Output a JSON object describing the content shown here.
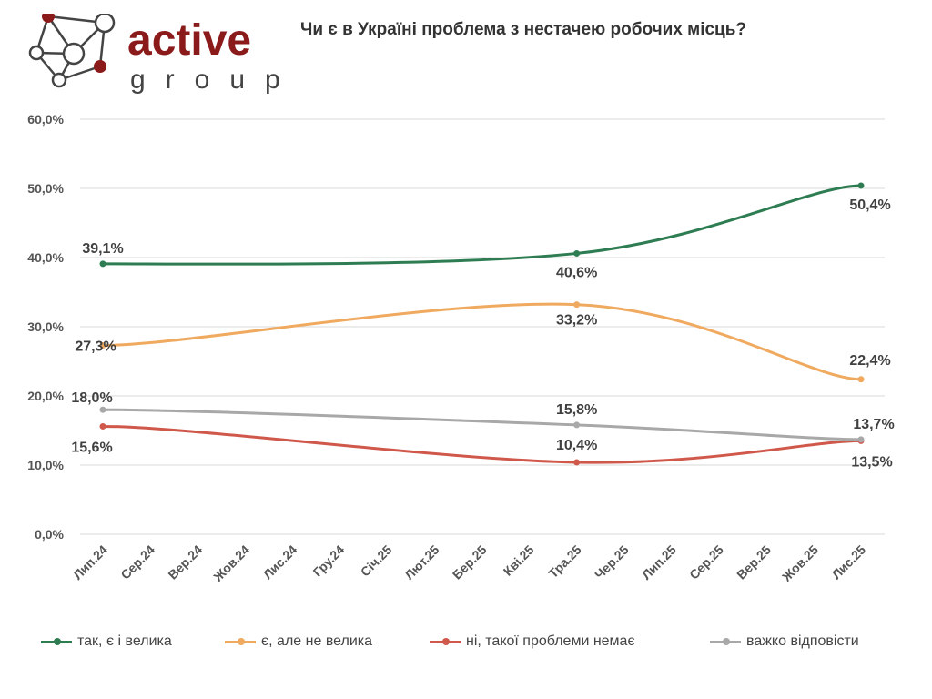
{
  "title": "Чи є в Україні проблема з нестачею робочих місць?",
  "logo": {
    "text_main": "active",
    "text_sub": "group",
    "color": "#8b1a1a"
  },
  "chart_data": {
    "type": "line",
    "title": "Чи є в Україні проблема з нестачею робочих місць?",
    "categories": [
      "Лип.24",
      "Сер.24",
      "Вер.24",
      "Жов.24",
      "Лис.24",
      "Гру.24",
      "Січ.25",
      "Лют.25",
      "Бер.25",
      "Кві.25",
      "Тра.25",
      "Чер.25",
      "Лип.25",
      "Сер.25",
      "Вер.25",
      "Жов.25",
      "Лис.25"
    ],
    "yticks": [
      "0,0%",
      "10,0%",
      "20,0%",
      "30,0%",
      "40,0%",
      "50,0%",
      "60,0%"
    ],
    "ylim": [
      0,
      60
    ],
    "grid": true,
    "legend_position": "bottom",
    "series": [
      {
        "name": "так, є і велика",
        "color": "#2e7d52",
        "points": [
          {
            "x": "Лип.24",
            "y": 39.1,
            "label": "39,1%"
          },
          {
            "x": "Тра.25",
            "y": 40.6,
            "label": "40,6%"
          },
          {
            "x": "Лис.25",
            "y": 50.4,
            "label": "50,4%"
          }
        ]
      },
      {
        "name": "є, але не велика",
        "color": "#f0aa60",
        "points": [
          {
            "x": "Лип.24",
            "y": 27.3,
            "label": "27,3%"
          },
          {
            "x": "Тра.25",
            "y": 33.2,
            "label": "33,2%"
          },
          {
            "x": "Лис.25",
            "y": 22.4,
            "label": "22,4%"
          }
        ]
      },
      {
        "name": "ні, такої проблеми немає",
        "color": "#d0584a",
        "points": [
          {
            "x": "Лип.24",
            "y": 15.6,
            "label": "15,6%"
          },
          {
            "x": "Тра.25",
            "y": 10.4,
            "label": "10,4%"
          },
          {
            "x": "Лис.25",
            "y": 13.5,
            "label": "13,5%"
          }
        ]
      },
      {
        "name": "важко відповісти",
        "color": "#a8a8a8",
        "points": [
          {
            "x": "Лип.24",
            "y": 18.0,
            "label": "18,0%"
          },
          {
            "x": "Тра.25",
            "y": 15.8,
            "label": "15,8%"
          },
          {
            "x": "Лис.25",
            "y": 13.7,
            "label": "13,7%"
          }
        ]
      }
    ]
  }
}
